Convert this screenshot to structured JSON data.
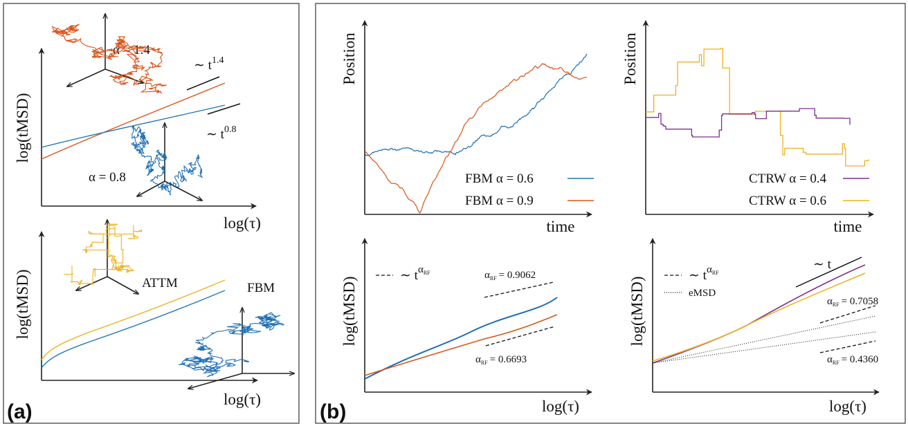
{
  "panel_a": {
    "label": "(a)",
    "top": {
      "y_label": "log(tMSD)",
      "x_label": "log(τ)",
      "alpha_high": "α = 1.4",
      "alpha_low": "α = 0.8",
      "slope_high": {
        "base": "∼ t",
        "exponent": "1.4"
      },
      "slope_low": {
        "base": "∼ t",
        "exponent": "0.8"
      }
    },
    "bottom": {
      "y_label": "log(tMSD)",
      "x_label": "log(τ)",
      "process_1": "ATTM",
      "process_2": "FBM"
    }
  },
  "panel_b": {
    "label": "(b)",
    "fbm": {
      "y_label": "Position",
      "x_label": "time",
      "legend": [
        "FBM α = 0.6",
        "FBM α = 0.9"
      ]
    },
    "ctrw": {
      "y_label": "Position",
      "x_label": "time",
      "legend": [
        "CTRW α = 0.4",
        "CTRW α = 0.6"
      ]
    },
    "fbm_msd": {
      "y_label": "log(tMSD)",
      "x_label": "log(τ)",
      "legend_fit": {
        "base": "∼ t",
        "exponent": "α",
        "subscript": "RF"
      },
      "fit_high": {
        "symbol": "α",
        "subscript": "RF",
        "value": "= 0.9062"
      },
      "fit_low": {
        "symbol": "α",
        "subscript": "RF",
        "value": "= 0.6693"
      }
    },
    "ctrw_msd": {
      "y_label": "log(tMSD)",
      "x_label": "log(τ)",
      "slope": "∼ t",
      "legend_fit": {
        "base": "∼ t",
        "exponent": "α",
        "subscript": "RF"
      },
      "legend_emsd": "eMSD",
      "fit_high": {
        "symbol": "α",
        "subscript": "RF",
        "value": "= 0.7058"
      },
      "fit_low": {
        "symbol": "α",
        "subscript": "RF",
        "value": "= 0.4360"
      }
    }
  }
}
